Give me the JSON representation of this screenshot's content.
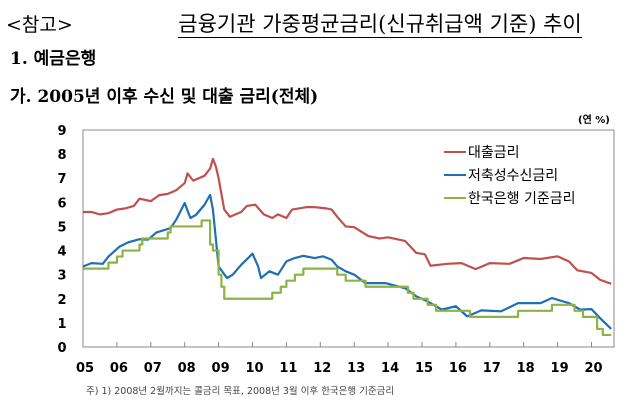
{
  "header": {
    "ref_label": "<참고>",
    "title": "금융기관 가중평균금리(신규취급액 기준) 추이",
    "section": "1. 예금은행",
    "subsection": "가. 2005년 이후 수신 및 대출 금리(전체)"
  },
  "footnote": "주) 1) 2008년 2월까지는 콜금리 목표, 2008년 3월 이후 한국은행 기준금리",
  "chart_data": {
    "type": "line",
    "title": "",
    "xlabel": "",
    "ylabel": "",
    "unit_label": "(연 %)",
    "ylim": [
      0,
      9
    ],
    "xlim": [
      "2005-01",
      "2020-08"
    ],
    "yticks": [
      "0",
      "1",
      "2",
      "3",
      "4",
      "5",
      "6",
      "7",
      "8",
      "9"
    ],
    "xticks": [
      "05",
      "06",
      "07",
      "08",
      "09",
      "10",
      "11",
      "12",
      "13",
      "14",
      "15",
      "16",
      "17",
      "18",
      "19",
      "20"
    ],
    "grid": false,
    "legend_position": "top-right",
    "series": [
      {
        "name": "대출금리",
        "color": "#c0504d",
        "step": false,
        "points": [
          [
            "2005-01",
            5.6
          ],
          [
            "2005-04",
            5.6
          ],
          [
            "2005-07",
            5.5
          ],
          [
            "2005-10",
            5.55
          ],
          [
            "2006-01",
            5.7
          ],
          [
            "2006-04",
            5.75
          ],
          [
            "2006-07",
            5.85
          ],
          [
            "2006-09",
            6.15
          ],
          [
            "2007-01",
            6.05
          ],
          [
            "2007-04",
            6.3
          ],
          [
            "2007-07",
            6.35
          ],
          [
            "2007-10",
            6.5
          ],
          [
            "2008-01",
            6.8
          ],
          [
            "2008-02",
            7.2
          ],
          [
            "2008-04",
            6.9
          ],
          [
            "2008-08",
            7.1
          ],
          [
            "2008-10",
            7.4
          ],
          [
            "2008-11",
            7.8
          ],
          [
            "2008-12",
            7.5
          ],
          [
            "2009-01",
            7.0
          ],
          [
            "2009-03",
            5.7
          ],
          [
            "2009-05",
            5.4
          ],
          [
            "2009-09",
            5.6
          ],
          [
            "2009-11",
            5.85
          ],
          [
            "2010-02",
            5.9
          ],
          [
            "2010-05",
            5.5
          ],
          [
            "2010-08",
            5.35
          ],
          [
            "2010-10",
            5.5
          ],
          [
            "2011-01",
            5.35
          ],
          [
            "2011-03",
            5.7
          ],
          [
            "2011-08",
            5.8
          ],
          [
            "2011-11",
            5.8
          ],
          [
            "2012-03",
            5.75
          ],
          [
            "2012-05",
            5.7
          ],
          [
            "2012-07",
            5.4
          ],
          [
            "2012-10",
            5.0
          ],
          [
            "2013-01",
            4.97
          ],
          [
            "2013-06",
            4.6
          ],
          [
            "2013-10",
            4.5
          ],
          [
            "2014-01",
            4.55
          ],
          [
            "2014-07",
            4.4
          ],
          [
            "2014-11",
            3.9
          ],
          [
            "2015-02",
            3.85
          ],
          [
            "2015-04",
            3.37
          ],
          [
            "2015-10",
            3.45
          ],
          [
            "2016-03",
            3.48
          ],
          [
            "2016-08",
            3.23
          ],
          [
            "2017-01",
            3.48
          ],
          [
            "2017-08",
            3.45
          ],
          [
            "2018-01",
            3.69
          ],
          [
            "2018-07",
            3.65
          ],
          [
            "2019-01",
            3.76
          ],
          [
            "2019-05",
            3.55
          ],
          [
            "2019-08",
            3.18
          ],
          [
            "2020-01",
            3.07
          ],
          [
            "2020-04",
            2.79
          ],
          [
            "2020-08",
            2.62
          ]
        ]
      },
      {
        "name": "저축성수신금리",
        "color": "#1f6fb4",
        "step": false,
        "points": [
          [
            "2005-01",
            3.34
          ],
          [
            "2005-04",
            3.48
          ],
          [
            "2005-08",
            3.45
          ],
          [
            "2005-10",
            3.75
          ],
          [
            "2006-02",
            4.17
          ],
          [
            "2006-05",
            4.34
          ],
          [
            "2006-09",
            4.47
          ],
          [
            "2006-12",
            4.45
          ],
          [
            "2007-03",
            4.75
          ],
          [
            "2007-08",
            4.93
          ],
          [
            "2007-10",
            5.28
          ],
          [
            "2008-01",
            5.97
          ],
          [
            "2008-03",
            5.35
          ],
          [
            "2008-05",
            5.48
          ],
          [
            "2008-08",
            5.9
          ],
          [
            "2008-10",
            6.31
          ],
          [
            "2008-11",
            5.69
          ],
          [
            "2009-01",
            3.34
          ],
          [
            "2009-04",
            2.86
          ],
          [
            "2009-06",
            3.0
          ],
          [
            "2009-09",
            3.41
          ],
          [
            "2010-01",
            3.87
          ],
          [
            "2010-03",
            3.34
          ],
          [
            "2010-04",
            2.86
          ],
          [
            "2010-07",
            3.14
          ],
          [
            "2010-10",
            3.0
          ],
          [
            "2011-01",
            3.55
          ],
          [
            "2011-04",
            3.69
          ],
          [
            "2011-07",
            3.78
          ],
          [
            "2011-11",
            3.69
          ],
          [
            "2012-02",
            3.76
          ],
          [
            "2012-05",
            3.62
          ],
          [
            "2012-07",
            3.34
          ],
          [
            "2012-10",
            3.14
          ],
          [
            "2013-01",
            3.0
          ],
          [
            "2013-05",
            2.65
          ],
          [
            "2013-12",
            2.65
          ],
          [
            "2014-07",
            2.44
          ],
          [
            "2014-11",
            2.1
          ],
          [
            "2015-03",
            1.89
          ],
          [
            "2015-08",
            1.55
          ],
          [
            "2016-01",
            1.69
          ],
          [
            "2016-05",
            1.27
          ],
          [
            "2016-10",
            1.52
          ],
          [
            "2017-05",
            1.48
          ],
          [
            "2017-11",
            1.82
          ],
          [
            "2018-07",
            1.82
          ],
          [
            "2018-11",
            2.03
          ],
          [
            "2019-05",
            1.82
          ],
          [
            "2019-09",
            1.55
          ],
          [
            "2020-01",
            1.57
          ],
          [
            "2020-04",
            1.2
          ],
          [
            "2020-08",
            0.75
          ]
        ]
      },
      {
        "name": "한국은행 기준금리",
        "color": "#8db245",
        "step": true,
        "points": [
          [
            "2005-01",
            3.25
          ],
          [
            "2005-10",
            3.5
          ],
          [
            "2006-01",
            3.75
          ],
          [
            "2006-03",
            4.0
          ],
          [
            "2006-09",
            4.25
          ],
          [
            "2006-10",
            4.5
          ],
          [
            "2007-07",
            4.75
          ],
          [
            "2007-08",
            5.0
          ],
          [
            "2008-07",
            5.25
          ],
          [
            "2008-10",
            4.25
          ],
          [
            "2008-11",
            4.0
          ],
          [
            "2009-01",
            3.0
          ],
          [
            "2009-02",
            2.5
          ],
          [
            "2009-03",
            2.0
          ],
          [
            "2010-08",
            2.25
          ],
          [
            "2010-11",
            2.5
          ],
          [
            "2011-01",
            2.75
          ],
          [
            "2011-04",
            3.0
          ],
          [
            "2011-07",
            3.25
          ],
          [
            "2012-07",
            3.0
          ],
          [
            "2012-10",
            2.75
          ],
          [
            "2013-05",
            2.5
          ],
          [
            "2014-08",
            2.25
          ],
          [
            "2014-10",
            2.0
          ],
          [
            "2015-03",
            1.75
          ],
          [
            "2015-06",
            1.5
          ],
          [
            "2016-06",
            1.25
          ],
          [
            "2017-11",
            1.5
          ],
          [
            "2018-11",
            1.75
          ],
          [
            "2019-07",
            1.5
          ],
          [
            "2019-10",
            1.25
          ],
          [
            "2020-03",
            0.75
          ],
          [
            "2020-05",
            0.5
          ],
          [
            "2020-08",
            0.5
          ]
        ]
      }
    ]
  }
}
